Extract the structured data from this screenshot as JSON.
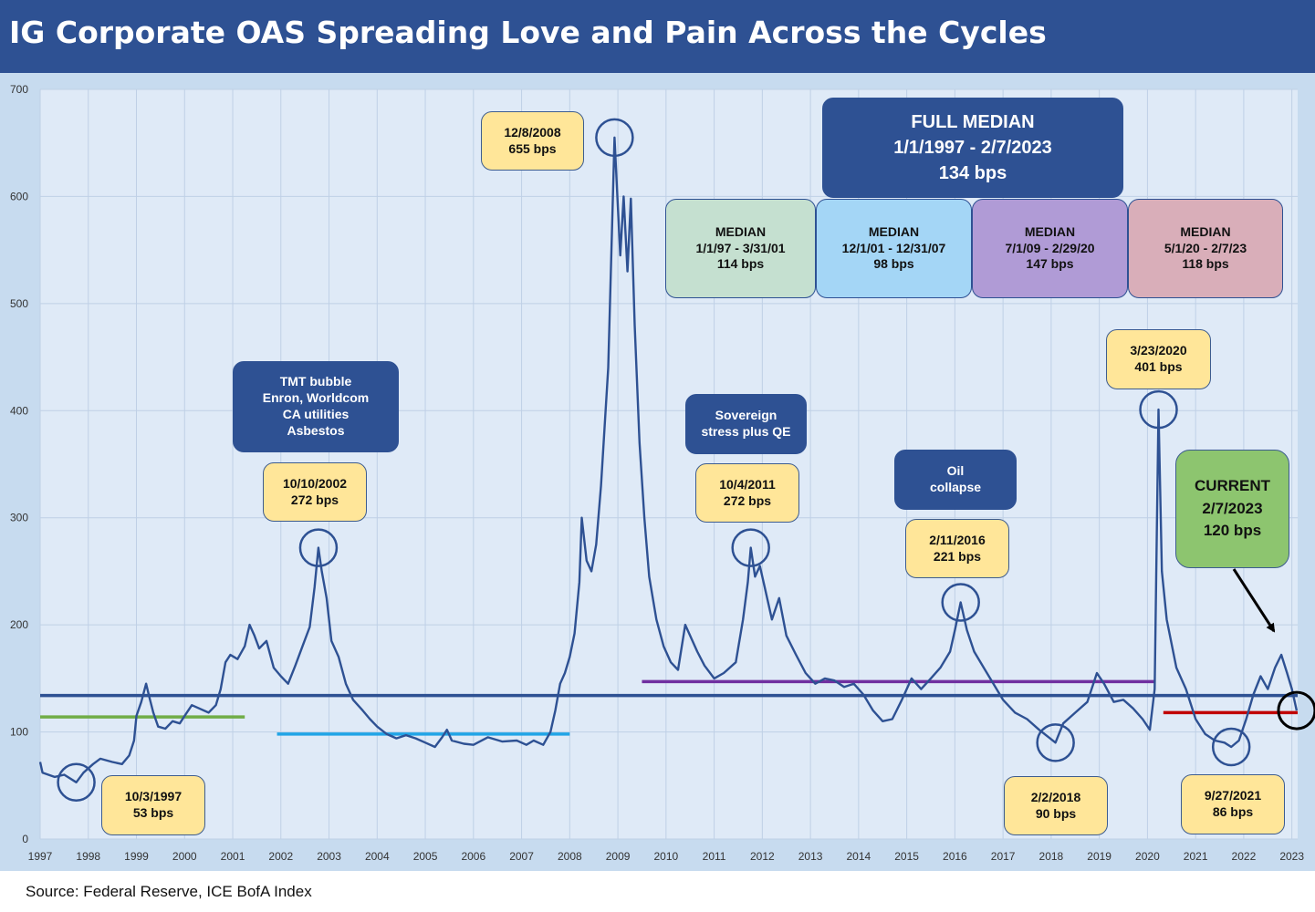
{
  "page": {
    "title": "IG Corporate OAS Spreading Love and Pain Across the Cycles",
    "source": "Source: Federal Reserve, ICE BofA Index"
  },
  "colors": {
    "header": "#2e5193",
    "frame": "#c7dbef",
    "plot": "#dfeaf7",
    "series": "#2e5193",
    "full_median": "#2e5193",
    "median_1997_2001": "#70ad47",
    "median_2001_2007": "#21a4e6",
    "median_2009_2020": "#7030a0",
    "median_2020_2023": "#c00000"
  },
  "chart_data": {
    "type": "line",
    "title": "IG Corporate OAS Spreading Love and Pain Across the Cycles",
    "xlabel": "",
    "ylabel": "",
    "ylim": [
      0,
      700
    ],
    "xlim": [
      1997,
      2023.12
    ],
    "yticks": [
      "0",
      "100",
      "200",
      "300",
      "400",
      "500",
      "600",
      "700"
    ],
    "xticks": [
      "1997",
      "1998",
      "1999",
      "2000",
      "2001",
      "2002",
      "2003",
      "2004",
      "2005",
      "2006",
      "2007",
      "2008",
      "2009",
      "2010",
      "2011",
      "2012",
      "2013",
      "2014",
      "2015",
      "2016",
      "2017",
      "2018",
      "2019",
      "2020",
      "2021",
      "2022",
      "2023"
    ],
    "grid": true,
    "series": [
      {
        "points": [
          [
            1997.0,
            72
          ],
          [
            1997.05,
            62
          ],
          [
            1997.3,
            58
          ],
          [
            1997.5,
            60
          ],
          [
            1997.75,
            53
          ],
          [
            1997.9,
            62
          ],
          [
            1998.1,
            70
          ],
          [
            1998.25,
            75
          ],
          [
            1998.5,
            72
          ],
          [
            1998.7,
            70
          ],
          [
            1998.85,
            78
          ],
          [
            1998.95,
            92
          ],
          [
            1999.0,
            115
          ],
          [
            1999.1,
            128
          ],
          [
            1999.2,
            145
          ],
          [
            1999.27,
            132
          ],
          [
            1999.35,
            118
          ],
          [
            1999.45,
            105
          ],
          [
            1999.6,
            103
          ],
          [
            1999.75,
            110
          ],
          [
            1999.9,
            108
          ],
          [
            2000.0,
            115
          ],
          [
            2000.15,
            125
          ],
          [
            2000.3,
            122
          ],
          [
            2000.5,
            118
          ],
          [
            2000.65,
            125
          ],
          [
            2000.75,
            140
          ],
          [
            2000.85,
            165
          ],
          [
            2000.95,
            172
          ],
          [
            2001.1,
            168
          ],
          [
            2001.25,
            180
          ],
          [
            2001.35,
            200
          ],
          [
            2001.45,
            190
          ],
          [
            2001.55,
            178
          ],
          [
            2001.7,
            185
          ],
          [
            2001.85,
            160
          ],
          [
            2002.0,
            152
          ],
          [
            2002.15,
            145
          ],
          [
            2002.3,
            162
          ],
          [
            2002.45,
            180
          ],
          [
            2002.6,
            198
          ],
          [
            2002.7,
            235
          ],
          [
            2002.78,
            272
          ],
          [
            2002.85,
            250
          ],
          [
            2002.95,
            225
          ],
          [
            2003.05,
            185
          ],
          [
            2003.2,
            170
          ],
          [
            2003.35,
            145
          ],
          [
            2003.5,
            130
          ],
          [
            2003.7,
            120
          ],
          [
            2003.85,
            112
          ],
          [
            2004.0,
            105
          ],
          [
            2004.2,
            98
          ],
          [
            2004.4,
            94
          ],
          [
            2004.6,
            97
          ],
          [
            2004.8,
            94
          ],
          [
            2005.0,
            90
          ],
          [
            2005.2,
            86
          ],
          [
            2005.35,
            95
          ],
          [
            2005.45,
            102
          ],
          [
            2005.55,
            92
          ],
          [
            2005.8,
            89
          ],
          [
            2006.0,
            88
          ],
          [
            2006.3,
            95
          ],
          [
            2006.6,
            91
          ],
          [
            2006.9,
            92
          ],
          [
            2007.1,
            88
          ],
          [
            2007.25,
            92
          ],
          [
            2007.45,
            88
          ],
          [
            2007.6,
            100
          ],
          [
            2007.7,
            120
          ],
          [
            2007.8,
            145
          ],
          [
            2007.9,
            155
          ],
          [
            2008.0,
            170
          ],
          [
            2008.1,
            192
          ],
          [
            2008.2,
            240
          ],
          [
            2008.25,
            300
          ],
          [
            2008.35,
            260
          ],
          [
            2008.45,
            250
          ],
          [
            2008.55,
            275
          ],
          [
            2008.65,
            330
          ],
          [
            2008.8,
            440
          ],
          [
            2008.93,
            655
          ],
          [
            2009.0,
            590
          ],
          [
            2009.05,
            545
          ],
          [
            2009.12,
            600
          ],
          [
            2009.2,
            530
          ],
          [
            2009.27,
            598
          ],
          [
            2009.35,
            480
          ],
          [
            2009.45,
            370
          ],
          [
            2009.55,
            300
          ],
          [
            2009.65,
            245
          ],
          [
            2009.8,
            205
          ],
          [
            2009.95,
            180
          ],
          [
            2010.1,
            165
          ],
          [
            2010.25,
            158
          ],
          [
            2010.4,
            200
          ],
          [
            2010.5,
            190
          ],
          [
            2010.65,
            175
          ],
          [
            2010.8,
            162
          ],
          [
            2011.0,
            150
          ],
          [
            2011.2,
            155
          ],
          [
            2011.45,
            165
          ],
          [
            2011.6,
            205
          ],
          [
            2011.7,
            240
          ],
          [
            2011.76,
            272
          ],
          [
            2011.85,
            245
          ],
          [
            2011.95,
            255
          ],
          [
            2012.05,
            235
          ],
          [
            2012.2,
            205
          ],
          [
            2012.35,
            225
          ],
          [
            2012.5,
            190
          ],
          [
            2012.7,
            172
          ],
          [
            2012.9,
            155
          ],
          [
            2013.1,
            145
          ],
          [
            2013.3,
            150
          ],
          [
            2013.5,
            148
          ],
          [
            2013.7,
            142
          ],
          [
            2013.9,
            145
          ],
          [
            2014.1,
            135
          ],
          [
            2014.3,
            120
          ],
          [
            2014.5,
            110
          ],
          [
            2014.7,
            112
          ],
          [
            2014.9,
            130
          ],
          [
            2015.1,
            150
          ],
          [
            2015.3,
            140
          ],
          [
            2015.5,
            150
          ],
          [
            2015.7,
            160
          ],
          [
            2015.9,
            175
          ],
          [
            2016.0,
            195
          ],
          [
            2016.12,
            221
          ],
          [
            2016.25,
            195
          ],
          [
            2016.4,
            175
          ],
          [
            2016.6,
            160
          ],
          [
            2016.8,
            145
          ],
          [
            2017.0,
            130
          ],
          [
            2017.25,
            118
          ],
          [
            2017.5,
            112
          ],
          [
            2017.75,
            102
          ],
          [
            2017.95,
            95
          ],
          [
            2018.09,
            90
          ],
          [
            2018.25,
            108
          ],
          [
            2018.5,
            118
          ],
          [
            2018.75,
            128
          ],
          [
            2018.95,
            155
          ],
          [
            2019.1,
            145
          ],
          [
            2019.3,
            128
          ],
          [
            2019.5,
            130
          ],
          [
            2019.7,
            122
          ],
          [
            2019.9,
            112
          ],
          [
            2020.05,
            102
          ],
          [
            2020.15,
            140
          ],
          [
            2020.23,
            401
          ],
          [
            2020.3,
            250
          ],
          [
            2020.4,
            205
          ],
          [
            2020.6,
            160
          ],
          [
            2020.8,
            140
          ],
          [
            2021.0,
            112
          ],
          [
            2021.2,
            98
          ],
          [
            2021.4,
            92
          ],
          [
            2021.6,
            90
          ],
          [
            2021.74,
            86
          ],
          [
            2021.9,
            92
          ],
          [
            2022.05,
            112
          ],
          [
            2022.2,
            135
          ],
          [
            2022.35,
            152
          ],
          [
            2022.5,
            140
          ],
          [
            2022.65,
            160
          ],
          [
            2022.78,
            172
          ],
          [
            2022.9,
            155
          ],
          [
            2023.0,
            140
          ],
          [
            2023.1,
            120
          ]
        ]
      }
    ],
    "reference_lines": [
      {
        "label": "Full median",
        "value": 134,
        "x0": 1997.0,
        "x1": 2023.12,
        "color": "#2e5193"
      },
      {
        "label": "Median 1997-2001",
        "value": 114,
        "x0": 1997.0,
        "x1": 2001.25,
        "color": "#70ad47"
      },
      {
        "label": "Median 2001-2007",
        "value": 98,
        "x0": 2001.92,
        "x1": 2008.0,
        "color": "#21a4e6"
      },
      {
        "label": "Median 2009-2020",
        "value": 147,
        "x0": 2009.5,
        "x1": 2020.17,
        "color": "#7030a0"
      },
      {
        "label": "Median 2020-2023",
        "value": 118,
        "x0": 2020.33,
        "x1": 2023.12,
        "color": "#c00000"
      }
    ],
    "highlight_circles": [
      {
        "x": 1997.75,
        "y": 53,
        "color": "#2e5193"
      },
      {
        "x": 2002.78,
        "y": 272,
        "color": "#2e5193"
      },
      {
        "x": 2008.93,
        "y": 655,
        "color": "#2e5193"
      },
      {
        "x": 2011.76,
        "y": 272,
        "color": "#2e5193"
      },
      {
        "x": 2016.12,
        "y": 221,
        "color": "#2e5193"
      },
      {
        "x": 2018.09,
        "y": 90,
        "color": "#2e5193"
      },
      {
        "x": 2020.23,
        "y": 401,
        "color": "#2e5193"
      },
      {
        "x": 2021.74,
        "y": 86,
        "color": "#2e5193"
      },
      {
        "x": 2023.1,
        "y": 120,
        "color": "#000000"
      }
    ],
    "annotations": {
      "c1997": [
        "10/3/1997",
        "53 bps"
      ],
      "c2002": [
        "10/10/2002",
        "272 bps"
      ],
      "c2008": [
        "12/8/2008",
        "655 bps"
      ],
      "c2011": [
        "10/4/2011",
        "272 bps"
      ],
      "c2016": [
        "2/11/2016",
        "221 bps"
      ],
      "c2018": [
        "2/2/2018",
        "90 bps"
      ],
      "c2020": [
        "3/23/2020",
        "401 bps"
      ],
      "c2021": [
        "9/27/2021",
        "86 bps"
      ],
      "tmt": [
        "TMT bubble",
        "Enron, Worldcom",
        "CA utilities",
        "Asbestos"
      ],
      "sovereign": [
        "Sovereign",
        "stress plus QE"
      ],
      "oil": [
        "Oil",
        "collapse"
      ],
      "full_median": [
        "FULL MEDIAN",
        "1/1/1997 - 2/7/2023",
        "134 bps"
      ],
      "median_a": [
        "MEDIAN",
        "1/1/97 - 3/31/01",
        "114 bps"
      ],
      "median_b": [
        "MEDIAN",
        "12/1/01 - 12/31/07",
        "98 bps"
      ],
      "median_c": [
        "MEDIAN",
        "7/1/09 - 2/29/20",
        "147 bps"
      ],
      "median_d": [
        "MEDIAN",
        "5/1/20 - 2/7/23",
        "118 bps"
      ],
      "current": [
        "CURRENT",
        "2/7/2023",
        "120 bps"
      ]
    }
  }
}
